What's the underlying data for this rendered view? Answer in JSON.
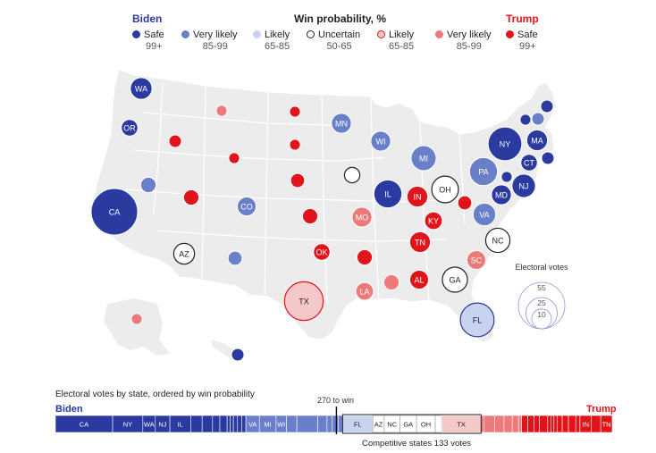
{
  "legend": {
    "biden_label": "Biden",
    "title": "Win probability, %",
    "trump_label": "Trump",
    "items": [
      {
        "label": "Safe",
        "range": "99+",
        "color": "#2b3a9e",
        "filled": true
      },
      {
        "label": "Very likely",
        "range": "85-99",
        "color": "#6a7fc9",
        "filled": true
      },
      {
        "label": "Likely",
        "range": "65-85",
        "color": "#c9d3f0",
        "filled": true
      },
      {
        "label": "Uncertain",
        "range": "50-65",
        "color": "#ffffff",
        "filled": false
      },
      {
        "label": "Likely",
        "range": "65-85",
        "color": "#f5c9c9",
        "filled": true
      },
      {
        "label": "Very likely",
        "range": "85-99",
        "color": "#ec7a7a",
        "filled": true
      },
      {
        "label": "Safe",
        "range": "99+",
        "color": "#e0151b",
        "filled": true
      }
    ]
  },
  "colors": {
    "safe_d": "#2b3a9e",
    "vlikely_d": "#6a7fc9",
    "likely_d": "#c9d3f0",
    "uncertain": "#ffffff",
    "likely_r": "#f5c9c9",
    "vlikely_r": "#ec7a7a",
    "safe_r": "#e0151b",
    "map_fill": "#ececec"
  },
  "states": [
    {
      "code": "WA",
      "ev": 12,
      "cat": "safe_d"
    },
    {
      "code": "OR",
      "ev": 7,
      "cat": "safe_d"
    },
    {
      "code": "CA",
      "ev": 55,
      "cat": "safe_d"
    },
    {
      "code": "NV",
      "ev": 6,
      "cat": "vlikely_d"
    },
    {
      "code": "ID",
      "ev": 4,
      "cat": "safe_r"
    },
    {
      "code": "MT",
      "ev": 3,
      "cat": "vlikely_r"
    },
    {
      "code": "WY",
      "ev": 3,
      "cat": "safe_r"
    },
    {
      "code": "UT",
      "ev": 6,
      "cat": "safe_r"
    },
    {
      "code": "AZ",
      "ev": 11,
      "cat": "uncertain"
    },
    {
      "code": "CO",
      "ev": 9,
      "cat": "vlikely_d"
    },
    {
      "code": "NM",
      "ev": 5,
      "cat": "vlikely_d"
    },
    {
      "code": "ND",
      "ev": 3,
      "cat": "safe_r"
    },
    {
      "code": "SD",
      "ev": 3,
      "cat": "safe_r"
    },
    {
      "code": "NE",
      "ev": 5,
      "cat": "safe_r"
    },
    {
      "code": "KS",
      "ev": 6,
      "cat": "safe_r"
    },
    {
      "code": "OK",
      "ev": 7,
      "cat": "safe_r"
    },
    {
      "code": "TX",
      "ev": 38,
      "cat": "likely_r"
    },
    {
      "code": "MN",
      "ev": 10,
      "cat": "vlikely_d"
    },
    {
      "code": "IA",
      "ev": 6,
      "cat": "uncertain"
    },
    {
      "code": "MO",
      "ev": 10,
      "cat": "vlikely_r"
    },
    {
      "code": "AR",
      "ev": 6,
      "cat": "safe_r"
    },
    {
      "code": "LA",
      "ev": 8,
      "cat": "vlikely_r"
    },
    {
      "code": "WI",
      "ev": 10,
      "cat": "vlikely_d"
    },
    {
      "code": "IL",
      "ev": 20,
      "cat": "safe_d"
    },
    {
      "code": "MI",
      "ev": 16,
      "cat": "vlikely_d"
    },
    {
      "code": "IN",
      "ev": 11,
      "cat": "safe_r"
    },
    {
      "code": "OH",
      "ev": 18,
      "cat": "uncertain"
    },
    {
      "code": "KY",
      "ev": 8,
      "cat": "safe_r"
    },
    {
      "code": "TN",
      "ev": 11,
      "cat": "safe_r"
    },
    {
      "code": "MS",
      "ev": 6,
      "cat": "vlikely_r"
    },
    {
      "code": "AL",
      "ev": 9,
      "cat": "safe_r"
    },
    {
      "code": "GA",
      "ev": 16,
      "cat": "uncertain"
    },
    {
      "code": "FL",
      "ev": 29,
      "cat": "likely_d"
    },
    {
      "code": "SC",
      "ev": 9,
      "cat": "vlikely_r"
    },
    {
      "code": "NC",
      "ev": 15,
      "cat": "uncertain"
    },
    {
      "code": "VA",
      "ev": 13,
      "cat": "vlikely_d"
    },
    {
      "code": "WV",
      "ev": 5,
      "cat": "safe_r"
    },
    {
      "code": "PA",
      "ev": 20,
      "cat": "vlikely_d"
    },
    {
      "code": "NY",
      "ev": 29,
      "cat": "safe_d"
    },
    {
      "code": "VT",
      "ev": 3,
      "cat": "safe_d"
    },
    {
      "code": "NH",
      "ev": 4,
      "cat": "vlikely_d"
    },
    {
      "code": "ME",
      "ev": 4,
      "cat": "safe_d"
    },
    {
      "code": "MA",
      "ev": 11,
      "cat": "safe_d"
    },
    {
      "code": "RI",
      "ev": 4,
      "cat": "safe_d"
    },
    {
      "code": "CT",
      "ev": 7,
      "cat": "safe_d"
    },
    {
      "code": "NJ",
      "ev": 14,
      "cat": "safe_d"
    },
    {
      "code": "DE",
      "ev": 3,
      "cat": "safe_d"
    },
    {
      "code": "MD",
      "ev": 10,
      "cat": "safe_d"
    },
    {
      "code": "AK",
      "ev": 3,
      "cat": "vlikely_r"
    },
    {
      "code": "HI",
      "ev": 4,
      "cat": "safe_d"
    }
  ],
  "size_legend": {
    "title": "Electoral votes",
    "values": [
      55,
      25,
      10
    ]
  },
  "bar": {
    "title": "Electoral votes by state, ordered by win probability",
    "left_label": "Biden",
    "right_label": "Trump",
    "threshold_label": "270 to win",
    "competitive_label": "Competitive states 133 votes",
    "order": [
      "CA",
      "NY",
      "WA",
      "NJ",
      "IL",
      "MA",
      "MD",
      "OR",
      "CT",
      "VT",
      "DE",
      "RI",
      "HI",
      "ME",
      "VA",
      "MI",
      "WI",
      "MN",
      "PA",
      "CO",
      "NM",
      "NV",
      "NH",
      "FL",
      "AZ",
      "NC",
      "GA",
      "OH",
      "IA",
      "TX",
      "MT",
      "MO",
      "SC",
      "LA",
      "MS",
      "AK",
      "AR",
      "UT",
      "WV",
      "KY",
      "WY",
      "ND",
      "SD",
      "NE",
      "KS",
      "OK",
      "ID",
      "IN",
      "AL",
      "TN"
    ],
    "labeled": [
      "CA",
      "NY",
      "WA",
      "NJ",
      "IL",
      "VA",
      "MI",
      "WI",
      "FL",
      "AZ",
      "NC",
      "GA",
      "OH",
      "TX",
      "IN",
      "TN"
    ]
  }
}
